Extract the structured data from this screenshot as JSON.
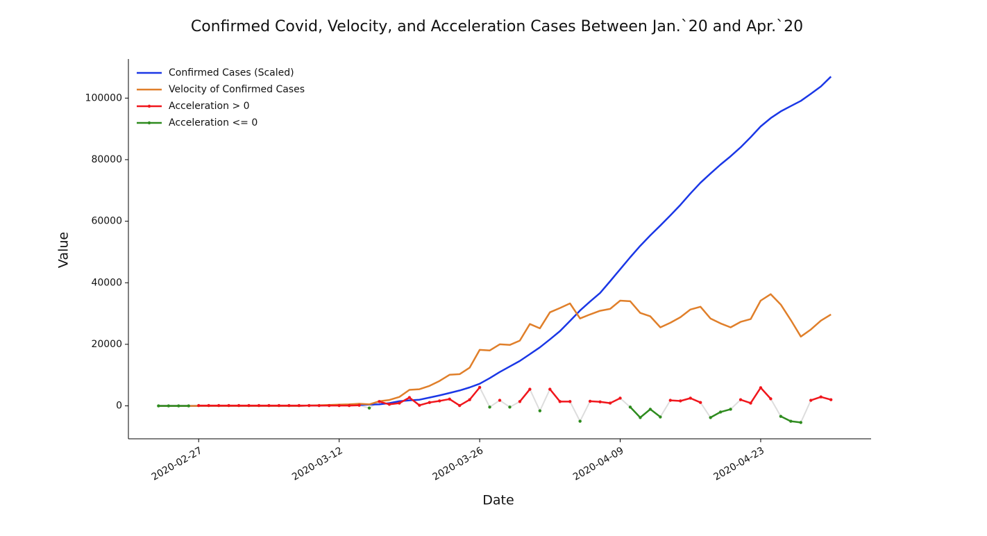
{
  "chart_data": {
    "type": "line",
    "title": "Confirmed Covid, Velocity, and Acceleration Cases Between Jan.`20 and Apr.`20",
    "x_label": "Date",
    "y_label": "Value",
    "x": [
      "2020-02-23",
      "2020-02-24",
      "2020-02-25",
      "2020-02-26",
      "2020-02-27",
      "2020-02-28",
      "2020-02-29",
      "2020-03-01",
      "2020-03-02",
      "2020-03-03",
      "2020-03-04",
      "2020-03-05",
      "2020-03-06",
      "2020-03-07",
      "2020-03-08",
      "2020-03-09",
      "2020-03-10",
      "2020-03-11",
      "2020-03-12",
      "2020-03-13",
      "2020-03-14",
      "2020-03-15",
      "2020-03-16",
      "2020-03-17",
      "2020-03-18",
      "2020-03-19",
      "2020-03-20",
      "2020-03-21",
      "2020-03-22",
      "2020-03-23",
      "2020-03-24",
      "2020-03-25",
      "2020-03-26",
      "2020-03-27",
      "2020-03-28",
      "2020-03-29",
      "2020-03-30",
      "2020-03-31",
      "2020-04-01",
      "2020-04-02",
      "2020-04-03",
      "2020-04-04",
      "2020-04-05",
      "2020-04-06",
      "2020-04-07",
      "2020-04-08",
      "2020-04-09",
      "2020-04-10",
      "2020-04-11",
      "2020-04-12",
      "2020-04-13",
      "2020-04-14",
      "2020-04-15",
      "2020-04-16",
      "2020-04-17",
      "2020-04-18",
      "2020-04-19",
      "2020-04-20",
      "2020-04-21",
      "2020-04-22",
      "2020-04-23",
      "2020-04-24",
      "2020-04-25",
      "2020-04-26",
      "2020-04-27",
      "2020-04-28",
      "2020-04-29",
      "2020-04-30"
    ],
    "series": [
      {
        "name": "Confirmed Cases (Scaled)",
        "color": "#1a37e6",
        "values": [
          0,
          0,
          0,
          0,
          0,
          0,
          0,
          0,
          0,
          0,
          0,
          0,
          0,
          0,
          0,
          100,
          100,
          200,
          200,
          300,
          300,
          400,
          500,
          900,
          1500,
          1800,
          2000,
          2700,
          3400,
          4200,
          5000,
          6000,
          7200,
          9000,
          11000,
          12800,
          14600,
          16800,
          19000,
          21600,
          24300,
          27600,
          31000,
          33900,
          36700,
          40500,
          44400,
          48300,
          52000,
          55400,
          58600,
          61900,
          65300,
          69000,
          72500,
          75500,
          78400,
          81100,
          84000,
          87300,
          90800,
          93500,
          95700,
          97400,
          99100,
          101400,
          103800,
          107000
        ]
      },
      {
        "name": "Velocity of Confirmed Cases",
        "color": "#e07f2a",
        "values": [
          0,
          0,
          0,
          0,
          0,
          0,
          0,
          0,
          0,
          0,
          0,
          0,
          0,
          0,
          0,
          100,
          200,
          300,
          400,
          500,
          700,
          500,
          1500,
          1900,
          2900,
          5200,
          5400,
          6500,
          8100,
          10100,
          10300,
          12400,
          18200,
          18000,
          20000,
          19800,
          21200,
          26600,
          25200,
          30400,
          31800,
          33300,
          28400,
          29700,
          30900,
          31500,
          34200,
          34000,
          30200,
          29100,
          25500,
          27000,
          28800,
          31300,
          32200,
          28400,
          26800,
          25500,
          27300,
          28200,
          34200,
          36300,
          32900,
          27900,
          22500,
          24800,
          27700,
          29700
        ]
      },
      {
        "name": "Acceleration > 0",
        "color": "#f0161c",
        "markers": true,
        "values": [
          null,
          null,
          null,
          null,
          100,
          100,
          100,
          100,
          100,
          100,
          100,
          100,
          100,
          100,
          100,
          100,
          100,
          100,
          100,
          100,
          200,
          null,
          1400,
          500,
          900,
          2700,
          200,
          1100,
          1600,
          2200,
          100,
          2000,
          6000,
          null,
          1800,
          null,
          1400,
          5400,
          null,
          5400,
          1400,
          1400,
          null,
          1500,
          1300,
          900,
          2500,
          null,
          null,
          null,
          null,
          1800,
          1600,
          2500,
          1100,
          null,
          null,
          null,
          2000,
          900,
          5900,
          2300,
          null,
          null,
          null,
          1800,
          2900,
          2000
        ]
      },
      {
        "name": "Acceleration <= 0",
        "color": "#2e8b1e",
        "markers": true,
        "values": [
          0,
          0,
          0,
          0,
          null,
          null,
          null,
          null,
          null,
          null,
          null,
          null,
          null,
          null,
          null,
          null,
          null,
          null,
          null,
          null,
          null,
          -700,
          null,
          null,
          null,
          null,
          null,
          null,
          null,
          null,
          null,
          null,
          null,
          -400,
          null,
          -400,
          null,
          null,
          -1600,
          null,
          null,
          null,
          -5000,
          null,
          null,
          null,
          null,
          -400,
          -3800,
          -1100,
          -3600,
          null,
          null,
          null,
          null,
          -3800,
          -2000,
          -1100,
          null,
          null,
          null,
          null,
          -3400,
          -5000,
          -5400,
          null,
          null,
          null
        ]
      }
    ],
    "transition_color": "#dddddd",
    "xlim": [
      "2020-02-20",
      "2020-05-04"
    ],
    "xticks": [
      "2020-02-27",
      "2020-03-12",
      "2020-03-26",
      "2020-04-09",
      "2020-04-23"
    ],
    "ylim": [
      -10700,
      112700
    ],
    "yticks": [
      0,
      20000,
      40000,
      60000,
      80000,
      100000
    ],
    "grid": false,
    "legend": "upper left"
  }
}
